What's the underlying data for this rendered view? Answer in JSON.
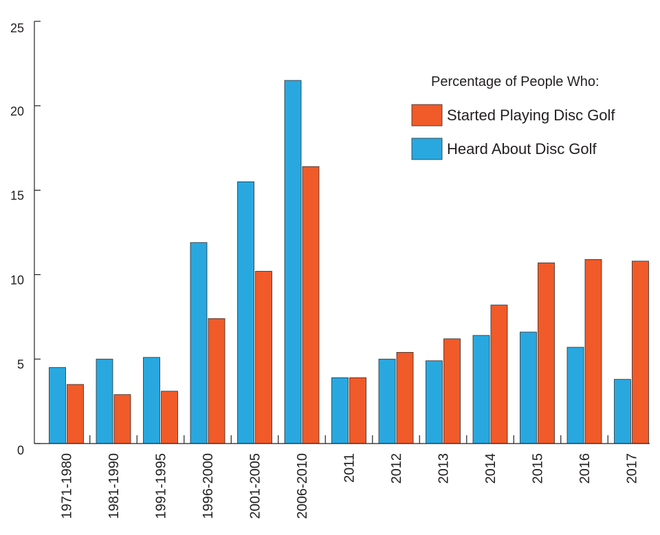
{
  "chart_data": {
    "type": "bar",
    "categories": [
      "1971-1980",
      "1981-1990",
      "1991-1995",
      "1996-2000",
      "2001-2005",
      "2006-2010",
      "2011",
      "2012",
      "2013",
      "2014",
      "2015",
      "2016",
      "2017"
    ],
    "series": [
      {
        "name": "Heard About Disc Golf",
        "color": "#29a8e0",
        "values": [
          4.5,
          5.0,
          5.1,
          11.9,
          15.5,
          21.5,
          3.9,
          5.0,
          4.9,
          6.4,
          6.6,
          5.7,
          3.8
        ]
      },
      {
        "name": "Started Playing Disc Golf",
        "color": "#f15a29",
        "values": [
          3.5,
          2.9,
          3.1,
          7.4,
          10.2,
          16.4,
          3.9,
          5.4,
          6.2,
          8.2,
          10.7,
          10.9,
          10.8
        ]
      }
    ],
    "ylim": [
      0,
      25
    ],
    "yticks": [
      "0",
      "5",
      "10",
      "15",
      "20",
      "25"
    ],
    "xlabel": "",
    "ylabel": "",
    "legend": {
      "title": "Percentage of People Who:",
      "placement": "top-right"
    },
    "grid": false
  }
}
